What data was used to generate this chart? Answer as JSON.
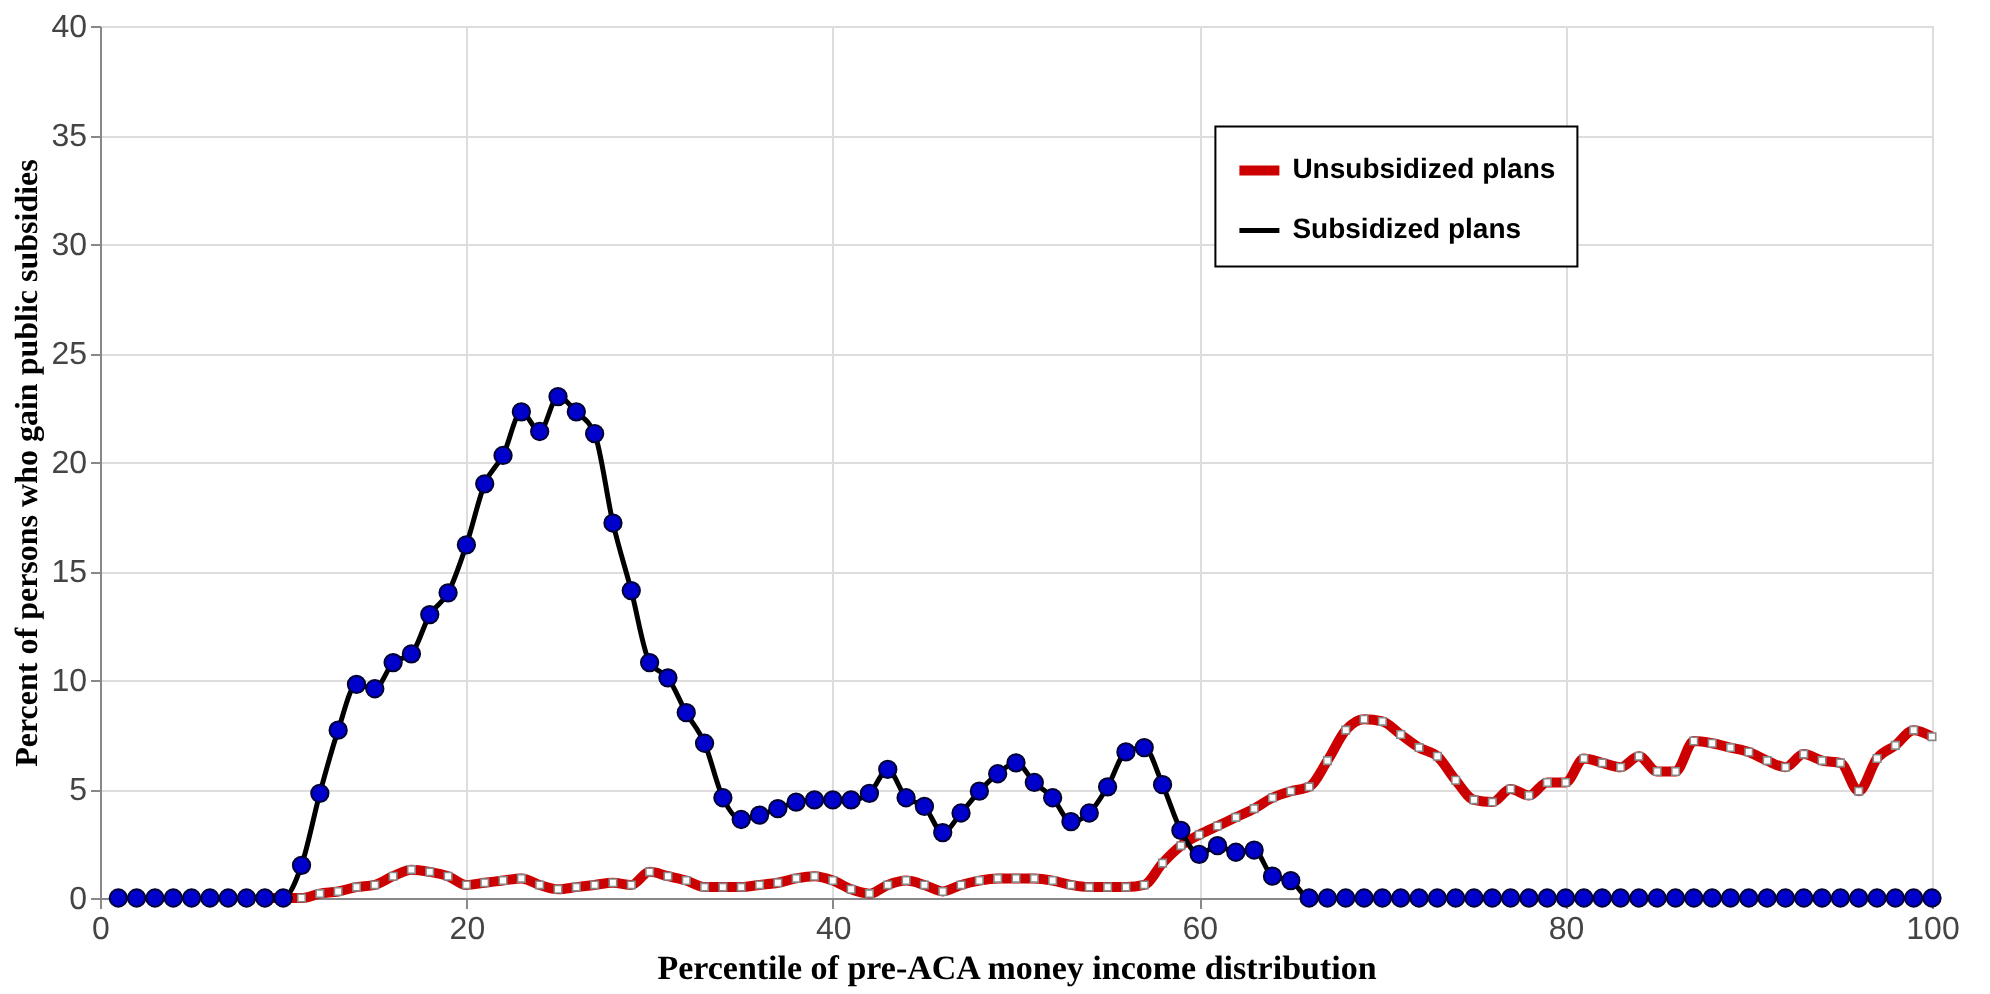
{
  "chart_data": {
    "type": "line",
    "xlabel": "Percentile of pre-ACA money income distribution",
    "ylabel": "Percent of persons who gain public subsidies",
    "x": [
      1,
      2,
      3,
      4,
      5,
      6,
      7,
      8,
      9,
      10,
      11,
      12,
      13,
      14,
      15,
      16,
      17,
      18,
      19,
      20,
      21,
      22,
      23,
      24,
      25,
      26,
      27,
      28,
      29,
      30,
      31,
      32,
      33,
      34,
      35,
      36,
      37,
      38,
      39,
      40,
      41,
      42,
      43,
      44,
      45,
      46,
      47,
      48,
      49,
      50,
      51,
      52,
      53,
      54,
      55,
      56,
      57,
      58,
      59,
      60,
      61,
      62,
      63,
      64,
      65,
      66,
      67,
      68,
      69,
      70,
      71,
      72,
      73,
      74,
      75,
      76,
      77,
      78,
      79,
      80,
      81,
      82,
      83,
      84,
      85,
      86,
      87,
      88,
      89,
      90,
      91,
      92,
      93,
      94,
      95,
      96,
      97,
      98,
      99,
      100
    ],
    "series": [
      {
        "name": "Unsubsidized plans",
        "color": "#cc0000",
        "marker": "square",
        "values": [
          null,
          null,
          null,
          null,
          null,
          null,
          null,
          null,
          0,
          0,
          0,
          0.2,
          0.3,
          0.5,
          0.6,
          1.0,
          1.3,
          1.2,
          1.0,
          0.6,
          0.7,
          0.8,
          0.9,
          0.6,
          0.4,
          0.5,
          0.6,
          0.7,
          0.6,
          1.2,
          1.0,
          0.8,
          0.5,
          0.5,
          0.5,
          0.6,
          0.7,
          0.9,
          1.0,
          0.8,
          0.4,
          0.2,
          0.6,
          0.8,
          0.6,
          0.3,
          0.6,
          0.8,
          0.9,
          0.9,
          0.9,
          0.8,
          0.6,
          0.5,
          0.5,
          0.5,
          0.6,
          1.6,
          2.4,
          2.9,
          3.3,
          3.7,
          4.1,
          4.6,
          4.9,
          5.1,
          6.3,
          7.7,
          8.2,
          8.1,
          7.5,
          6.9,
          6.5,
          5.4,
          4.5,
          4.4,
          5.0,
          4.7,
          5.3,
          5.3,
          6.4,
          6.2,
          6.0,
          6.5,
          5.8,
          5.8,
          7.2,
          7.1,
          6.9,
          6.7,
          6.3,
          6.0,
          6.6,
          6.3,
          6.2,
          4.9,
          6.4,
          7.0,
          7.7,
          7.4
        ]
      },
      {
        "name": "Subsidized plans",
        "color": "#0000cc",
        "marker": "circle",
        "values": [
          0,
          0,
          0,
          0,
          0,
          0,
          0,
          0,
          0,
          0,
          1.5,
          4.8,
          7.7,
          9.8,
          9.6,
          10.8,
          11.2,
          13,
          14,
          16.2,
          19,
          20.3,
          22.3,
          21.4,
          23,
          22.3,
          21.3,
          17.2,
          14.1,
          10.8,
          10.1,
          8.5,
          7.1,
          4.6,
          3.6,
          3.8,
          4.1,
          4.4,
          4.5,
          4.5,
          4.5,
          4.8,
          5.9,
          4.6,
          4.2,
          3.0,
          3.9,
          4.9,
          5.7,
          6.2,
          5.3,
          4.6,
          3.5,
          3.9,
          5.1,
          6.7,
          6.9,
          5.2,
          3.1,
          2.0,
          2.4,
          2.1,
          2.2,
          1.0,
          0.8,
          0,
          0,
          0,
          0,
          0,
          0,
          0,
          0,
          0,
          0,
          0,
          0,
          0,
          0,
          0,
          0,
          0,
          0,
          0,
          0,
          0,
          0,
          0,
          0,
          0,
          0,
          0,
          0,
          0,
          0,
          0,
          0,
          0,
          0,
          0
        ]
      }
    ],
    "xlim": [
      0,
      100
    ],
    "xticks": [
      0,
      20,
      40,
      60,
      80,
      100
    ],
    "ylim": [
      0,
      40
    ],
    "yticks": [
      0,
      5,
      10,
      15,
      20,
      25,
      30,
      35,
      40
    ],
    "grid": true,
    "legend": "top right",
    "line_style": "solid"
  }
}
